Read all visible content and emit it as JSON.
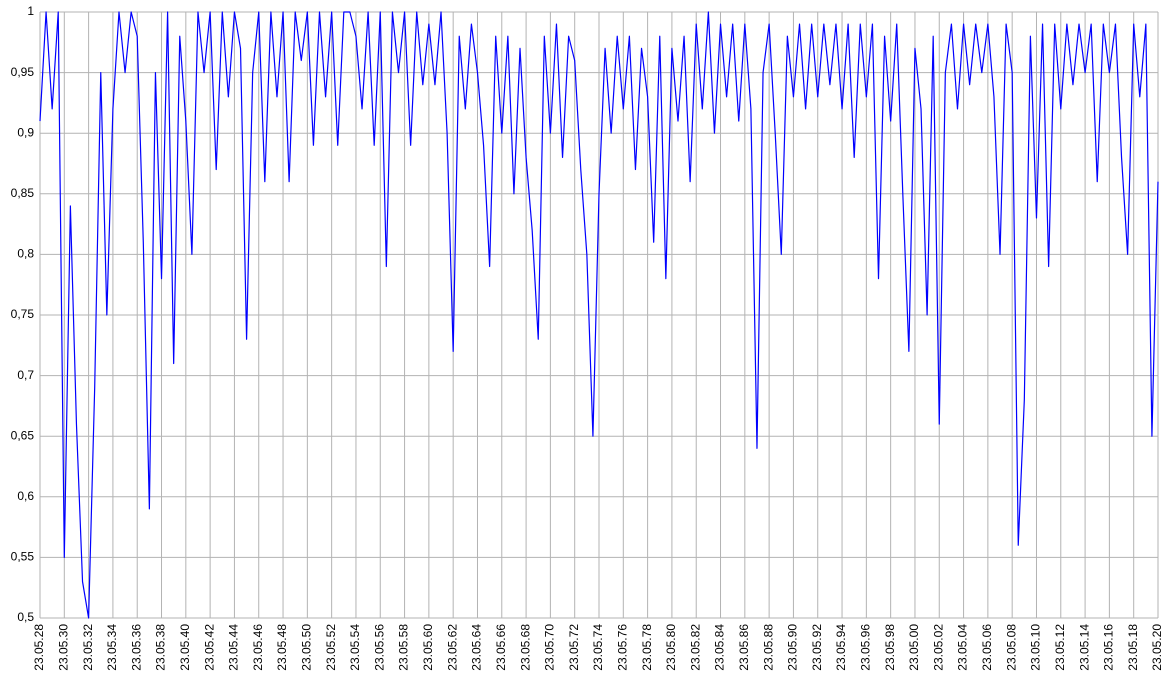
{
  "chart_data": {
    "type": "line",
    "categories": [
      "23.05.28",
      null,
      null,
      null,
      "23.05.30",
      null,
      null,
      null,
      "23.05.32",
      null,
      null,
      null,
      "23.05.34",
      null,
      null,
      null,
      "23.05.36",
      null,
      null,
      null,
      "23.05.38",
      null,
      null,
      null,
      "23.05.40",
      null,
      null,
      null,
      "23.05.42",
      null,
      null,
      null,
      "23.05.44",
      null,
      null,
      null,
      "23.05.46",
      null,
      null,
      null,
      "23.05.48",
      null,
      null,
      null,
      "23.05.50",
      null,
      null,
      null,
      "23.05.52",
      null,
      null,
      null,
      "23.05.54",
      null,
      null,
      null,
      "23.05.56",
      null,
      null,
      null,
      "23.05.58",
      null,
      null,
      null,
      "23.05.60",
      null,
      null,
      null,
      "23.05.62",
      null,
      null,
      null,
      "23.05.64",
      null,
      null,
      null,
      "23.05.66",
      null,
      null,
      null,
      "23.05.68",
      null,
      null,
      null,
      "23.05.70",
      null,
      null,
      null,
      "23.05.72",
      null,
      null,
      null,
      "23.05.74",
      null,
      null,
      null,
      "23.05.76",
      null,
      null,
      null,
      "23.05.78",
      null,
      null,
      null,
      "23.05.80",
      null,
      null,
      null,
      "23.05.82",
      null,
      null,
      null,
      "23.05.84",
      null,
      null,
      null,
      "23.05.86",
      null,
      null,
      null,
      "23.05.88",
      null,
      null,
      null,
      "23.05.90",
      null,
      null,
      null,
      "23.05.92",
      null,
      null,
      null,
      "23.05.94",
      null,
      null,
      null,
      "23.05.96",
      null,
      null,
      null,
      "23.05.98",
      null,
      null,
      null,
      "23.05.00",
      null,
      null,
      null,
      "23.05.02",
      null,
      null,
      null,
      "23.05.04",
      null,
      null,
      null,
      "23.05.06",
      null,
      null,
      null,
      "23.05.08",
      null,
      null,
      null,
      "23.05.10",
      null,
      null,
      null,
      "23.05.12",
      null,
      null,
      null,
      "23.05.14",
      null,
      null,
      null,
      "23.05.16",
      null,
      null,
      null,
      "23.05.18",
      null,
      null,
      null,
      "23.05.20"
    ],
    "series": [
      {
        "color": "#0000ff",
        "values": [
          0.91,
          1,
          0.92,
          1,
          0.55,
          0.84,
          0.66,
          0.53,
          0.5,
          0.69,
          0.95,
          0.75,
          0.92,
          1,
          0.95,
          1,
          0.98,
          0.81,
          0.59,
          0.95,
          0.78,
          1,
          0.71,
          0.98,
          0.91,
          0.8,
          1,
          0.95,
          1,
          0.87,
          1,
          0.93,
          1,
          0.97,
          0.73,
          0.95,
          1,
          0.86,
          1,
          0.93,
          1,
          0.86,
          1,
          0.96,
          1,
          0.89,
          1,
          0.93,
          1,
          0.89,
          1,
          1,
          0.98,
          0.92,
          1,
          0.89,
          1,
          0.79,
          1,
          0.95,
          1,
          0.89,
          1,
          0.94,
          0.99,
          0.94,
          1,
          0.9,
          0.72,
          0.98,
          0.92,
          0.99,
          0.95,
          0.89,
          0.79,
          0.98,
          0.9,
          0.98,
          0.85,
          0.97,
          0.88,
          0.82,
          0.73,
          0.98,
          0.9,
          0.99,
          0.88,
          0.98,
          0.96,
          0.87,
          0.8,
          0.65,
          0.85,
          0.97,
          0.9,
          0.98,
          0.92,
          0.98,
          0.87,
          0.97,
          0.93,
          0.81,
          0.98,
          0.78,
          0.97,
          0.91,
          0.98,
          0.86,
          0.99,
          0.92,
          1,
          0.9,
          0.99,
          0.93,
          0.99,
          0.91,
          0.99,
          0.92,
          0.64,
          0.95,
          0.99,
          0.9,
          0.8,
          0.98,
          0.93,
          0.99,
          0.92,
          0.99,
          0.93,
          0.99,
          0.94,
          0.99,
          0.92,
          0.99,
          0.88,
          0.99,
          0.93,
          0.99,
          0.78,
          0.98,
          0.91,
          0.99,
          0.85,
          0.72,
          0.97,
          0.92,
          0.75,
          0.98,
          0.66,
          0.95,
          0.99,
          0.92,
          0.99,
          0.94,
          0.99,
          0.95,
          0.99,
          0.93,
          0.8,
          0.99,
          0.95,
          0.56,
          0.68,
          0.98,
          0.83,
          0.99,
          0.79,
          0.99,
          0.92,
          0.99,
          0.94,
          0.99,
          0.95,
          0.99,
          0.86,
          0.99,
          0.95,
          0.99,
          0.88,
          0.8,
          0.99,
          0.93,
          0.99,
          0.65,
          0.86
        ]
      }
    ],
    "ylim": [
      0.5,
      1
    ],
    "yticks": [
      {
        "value": 0.5,
        "label": "0,5"
      },
      {
        "value": 0.55,
        "label": "0,55"
      },
      {
        "value": 0.6,
        "label": "0,6"
      },
      {
        "value": 0.65,
        "label": "0,65"
      },
      {
        "value": 0.7,
        "label": "0,7"
      },
      {
        "value": 0.75,
        "label": "0,75"
      },
      {
        "value": 0.8,
        "label": "0,8"
      },
      {
        "value": 0.85,
        "label": "0,85"
      },
      {
        "value": 0.9,
        "label": "0,9"
      },
      {
        "value": 0.95,
        "label": "0,95"
      },
      1
    ],
    "grid": true
  }
}
